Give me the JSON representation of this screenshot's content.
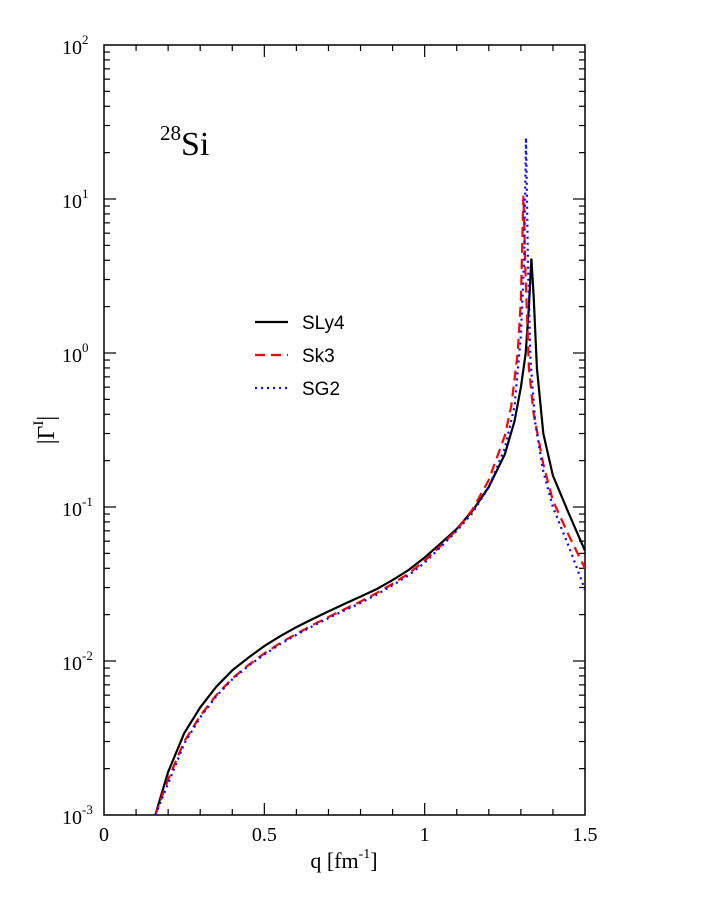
{
  "chart_data": {
    "type": "line",
    "annotation": {
      "mass": "28",
      "element": "Si"
    },
    "xlabel": {
      "main": "q [fm",
      "sup": "-1",
      "tail": "]"
    },
    "ylabel": {
      "main": "|Γ",
      "sup": "I",
      "tail": "|"
    },
    "xscale": "linear",
    "yscale": "log",
    "xlim": [
      0,
      1.5
    ],
    "ylim": [
      0.001,
      100
    ],
    "grid": false,
    "legend_position": "center-left",
    "x_ticks": [
      {
        "value": 0,
        "label": "0"
      },
      {
        "value": 0.5,
        "label": "0.5"
      },
      {
        "value": 1,
        "label": "1"
      },
      {
        "value": 1.5,
        "label": "1.5"
      }
    ],
    "y_ticks": [
      {
        "value": 0.001,
        "base": "10",
        "exp": "-3"
      },
      {
        "value": 0.01,
        "base": "10",
        "exp": "-2"
      },
      {
        "value": 0.1,
        "base": "10",
        "exp": "-1"
      },
      {
        "value": 1,
        "base": "10",
        "exp": "0"
      },
      {
        "value": 10,
        "base": "10",
        "exp": "1"
      },
      {
        "value": 100,
        "base": "10",
        "exp": "2"
      }
    ],
    "series": [
      {
        "name": "SLy4",
        "color": "#000000",
        "dash": "solid",
        "points": [
          [
            0.16,
            0.001
          ],
          [
            0.2,
            0.0019
          ],
          [
            0.25,
            0.0034
          ],
          [
            0.3,
            0.005
          ],
          [
            0.35,
            0.0068
          ],
          [
            0.4,
            0.0087
          ],
          [
            0.45,
            0.0105
          ],
          [
            0.5,
            0.0125
          ],
          [
            0.55,
            0.0145
          ],
          [
            0.6,
            0.0166
          ],
          [
            0.65,
            0.0187
          ],
          [
            0.7,
            0.021
          ],
          [
            0.75,
            0.0235
          ],
          [
            0.8,
            0.0262
          ],
          [
            0.85,
            0.0293
          ],
          [
            0.9,
            0.0335
          ],
          [
            0.95,
            0.039
          ],
          [
            1.0,
            0.047
          ],
          [
            1.05,
            0.058
          ],
          [
            1.1,
            0.072
          ],
          [
            1.15,
            0.095
          ],
          [
            1.2,
            0.135
          ],
          [
            1.25,
            0.22
          ],
          [
            1.28,
            0.36
          ],
          [
            1.3,
            0.6
          ],
          [
            1.315,
            1.0
          ],
          [
            1.325,
            2.0
          ],
          [
            1.333,
            4.1
          ],
          [
            1.34,
            2.3
          ],
          [
            1.35,
            0.8
          ],
          [
            1.37,
            0.3
          ],
          [
            1.4,
            0.16
          ],
          [
            1.45,
            0.09
          ],
          [
            1.5,
            0.052
          ]
        ]
      },
      {
        "name": "Sk3",
        "color": "#ff0000",
        "dash": "dashed",
        "points": [
          [
            0.16,
            0.001
          ],
          [
            0.2,
            0.0017
          ],
          [
            0.25,
            0.003
          ],
          [
            0.3,
            0.0044
          ],
          [
            0.35,
            0.006
          ],
          [
            0.4,
            0.0077
          ],
          [
            0.45,
            0.0094
          ],
          [
            0.5,
            0.0112
          ],
          [
            0.55,
            0.0131
          ],
          [
            0.6,
            0.015
          ],
          [
            0.65,
            0.0171
          ],
          [
            0.7,
            0.0193
          ],
          [
            0.75,
            0.0217
          ],
          [
            0.8,
            0.0243
          ],
          [
            0.85,
            0.0276
          ],
          [
            0.9,
            0.0317
          ],
          [
            0.95,
            0.037
          ],
          [
            1.0,
            0.0448
          ],
          [
            1.05,
            0.056
          ],
          [
            1.1,
            0.071
          ],
          [
            1.15,
            0.097
          ],
          [
            1.2,
            0.15
          ],
          [
            1.25,
            0.29
          ],
          [
            1.27,
            0.45
          ],
          [
            1.29,
            1.0
          ],
          [
            1.3,
            2.2
          ],
          [
            1.308,
            10.5
          ],
          [
            1.315,
            3.0
          ],
          [
            1.325,
            0.8
          ],
          [
            1.34,
            0.4
          ],
          [
            1.37,
            0.19
          ],
          [
            1.4,
            0.11
          ],
          [
            1.45,
            0.065
          ],
          [
            1.5,
            0.04
          ]
        ]
      },
      {
        "name": "SG2",
        "color": "#0000ff",
        "dash": "dotted",
        "points": [
          [
            0.16,
            0.001
          ],
          [
            0.2,
            0.0016
          ],
          [
            0.25,
            0.0029
          ],
          [
            0.3,
            0.0043
          ],
          [
            0.35,
            0.0059
          ],
          [
            0.4,
            0.0076
          ],
          [
            0.45,
            0.0093
          ],
          [
            0.5,
            0.011
          ],
          [
            0.55,
            0.0129
          ],
          [
            0.6,
            0.0148
          ],
          [
            0.65,
            0.0168
          ],
          [
            0.7,
            0.019
          ],
          [
            0.75,
            0.0213
          ],
          [
            0.8,
            0.0238
          ],
          [
            0.85,
            0.027
          ],
          [
            0.9,
            0.031
          ],
          [
            0.95,
            0.036
          ],
          [
            1.0,
            0.0435
          ],
          [
            1.05,
            0.055
          ],
          [
            1.1,
            0.07
          ],
          [
            1.15,
            0.092
          ],
          [
            1.2,
            0.135
          ],
          [
            1.25,
            0.24
          ],
          [
            1.28,
            0.45
          ],
          [
            1.3,
            1.3
          ],
          [
            1.31,
            4.0
          ],
          [
            1.316,
            25.0
          ],
          [
            1.322,
            4.0
          ],
          [
            1.33,
            0.9
          ],
          [
            1.345,
            0.35
          ],
          [
            1.37,
            0.17
          ],
          [
            1.4,
            0.1
          ],
          [
            1.45,
            0.055
          ],
          [
            1.5,
            0.029
          ]
        ]
      }
    ]
  }
}
